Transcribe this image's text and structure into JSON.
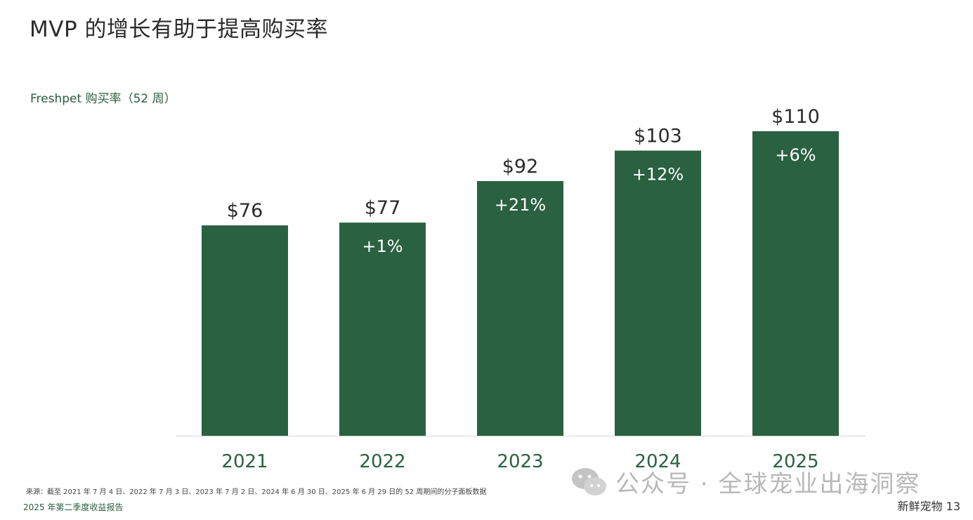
{
  "page": {
    "title": "MVP 的增长有助于提高购买率",
    "source_note": "来源：截至 2021 年 7 月 4 日、2022 年 7 月 3 日、2023 年 7 月 2 日、2024 年 6 月 30 日、2025 年 6 月 29 日的 52 周期间的分子面板数据",
    "footer_left": "2025 年第二季度收益报告",
    "footer_right": "新鲜宠物 13",
    "watermark": "公众号 · 全球宠业出海洞察"
  },
  "colors": {
    "bar": "#2a6141",
    "label": "#2b2b2b",
    "year": "#2a6141",
    "growth": "#ffffff",
    "baseline": "#d9d9d9"
  },
  "chart_data": {
    "type": "bar",
    "title": "Freshpet 购买率（52 周）",
    "categories": [
      "2021",
      "2022",
      "2023",
      "2024",
      "2025"
    ],
    "values": [
      76,
      77,
      92,
      103,
      110
    ],
    "value_labels": [
      "$76",
      "$77",
      "$92",
      "$103",
      "$110"
    ],
    "growth_labels": [
      "",
      "+1%",
      "+21%",
      "+12%",
      "+6%"
    ],
    "ylim": [
      0,
      110
    ],
    "grid": false,
    "legend": "none"
  }
}
